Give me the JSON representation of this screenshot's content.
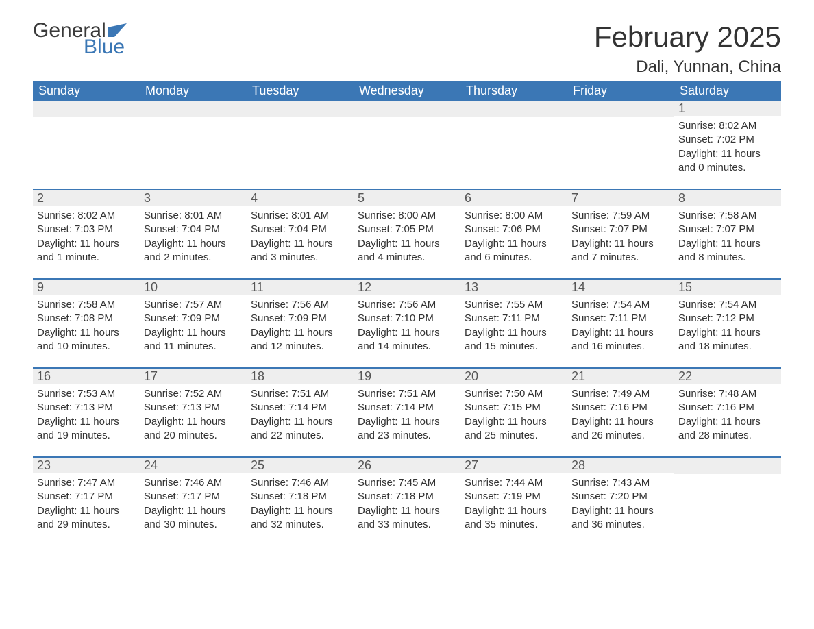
{
  "logo": {
    "general": "General",
    "blue": "Blue"
  },
  "header": {
    "month_title": "February 2025",
    "location": "Dali, Yunnan, China"
  },
  "colors": {
    "header_bg": "#3b77b5",
    "header_text": "#ffffff",
    "daynum_bg": "#eeeeee",
    "row_border": "#3b77b5",
    "text": "#333333",
    "logo_blue": "#3b77b5"
  },
  "weekdays": [
    "Sunday",
    "Monday",
    "Tuesday",
    "Wednesday",
    "Thursday",
    "Friday",
    "Saturday"
  ],
  "labels": {
    "sunrise": "Sunrise",
    "sunset": "Sunset",
    "daylight": "Daylight"
  },
  "weeks": [
    [
      null,
      null,
      null,
      null,
      null,
      null,
      {
        "d": "1",
        "sr": "8:02 AM",
        "ss": "7:02 PM",
        "dl": "11 hours and 0 minutes."
      }
    ],
    [
      {
        "d": "2",
        "sr": "8:02 AM",
        "ss": "7:03 PM",
        "dl": "11 hours and 1 minute."
      },
      {
        "d": "3",
        "sr": "8:01 AM",
        "ss": "7:04 PM",
        "dl": "11 hours and 2 minutes."
      },
      {
        "d": "4",
        "sr": "8:01 AM",
        "ss": "7:04 PM",
        "dl": "11 hours and 3 minutes."
      },
      {
        "d": "5",
        "sr": "8:00 AM",
        "ss": "7:05 PM",
        "dl": "11 hours and 4 minutes."
      },
      {
        "d": "6",
        "sr": "8:00 AM",
        "ss": "7:06 PM",
        "dl": "11 hours and 6 minutes."
      },
      {
        "d": "7",
        "sr": "7:59 AM",
        "ss": "7:07 PM",
        "dl": "11 hours and 7 minutes."
      },
      {
        "d": "8",
        "sr": "7:58 AM",
        "ss": "7:07 PM",
        "dl": "11 hours and 8 minutes."
      }
    ],
    [
      {
        "d": "9",
        "sr": "7:58 AM",
        "ss": "7:08 PM",
        "dl": "11 hours and 10 minutes."
      },
      {
        "d": "10",
        "sr": "7:57 AM",
        "ss": "7:09 PM",
        "dl": "11 hours and 11 minutes."
      },
      {
        "d": "11",
        "sr": "7:56 AM",
        "ss": "7:09 PM",
        "dl": "11 hours and 12 minutes."
      },
      {
        "d": "12",
        "sr": "7:56 AM",
        "ss": "7:10 PM",
        "dl": "11 hours and 14 minutes."
      },
      {
        "d": "13",
        "sr": "7:55 AM",
        "ss": "7:11 PM",
        "dl": "11 hours and 15 minutes."
      },
      {
        "d": "14",
        "sr": "7:54 AM",
        "ss": "7:11 PM",
        "dl": "11 hours and 16 minutes."
      },
      {
        "d": "15",
        "sr": "7:54 AM",
        "ss": "7:12 PM",
        "dl": "11 hours and 18 minutes."
      }
    ],
    [
      {
        "d": "16",
        "sr": "7:53 AM",
        "ss": "7:13 PM",
        "dl": "11 hours and 19 minutes."
      },
      {
        "d": "17",
        "sr": "7:52 AM",
        "ss": "7:13 PM",
        "dl": "11 hours and 20 minutes."
      },
      {
        "d": "18",
        "sr": "7:51 AM",
        "ss": "7:14 PM",
        "dl": "11 hours and 22 minutes."
      },
      {
        "d": "19",
        "sr": "7:51 AM",
        "ss": "7:14 PM",
        "dl": "11 hours and 23 minutes."
      },
      {
        "d": "20",
        "sr": "7:50 AM",
        "ss": "7:15 PM",
        "dl": "11 hours and 25 minutes."
      },
      {
        "d": "21",
        "sr": "7:49 AM",
        "ss": "7:16 PM",
        "dl": "11 hours and 26 minutes."
      },
      {
        "d": "22",
        "sr": "7:48 AM",
        "ss": "7:16 PM",
        "dl": "11 hours and 28 minutes."
      }
    ],
    [
      {
        "d": "23",
        "sr": "7:47 AM",
        "ss": "7:17 PM",
        "dl": "11 hours and 29 minutes."
      },
      {
        "d": "24",
        "sr": "7:46 AM",
        "ss": "7:17 PM",
        "dl": "11 hours and 30 minutes."
      },
      {
        "d": "25",
        "sr": "7:46 AM",
        "ss": "7:18 PM",
        "dl": "11 hours and 32 minutes."
      },
      {
        "d": "26",
        "sr": "7:45 AM",
        "ss": "7:18 PM",
        "dl": "11 hours and 33 minutes."
      },
      {
        "d": "27",
        "sr": "7:44 AM",
        "ss": "7:19 PM",
        "dl": "11 hours and 35 minutes."
      },
      {
        "d": "28",
        "sr": "7:43 AM",
        "ss": "7:20 PM",
        "dl": "11 hours and 36 minutes."
      },
      null
    ]
  ]
}
